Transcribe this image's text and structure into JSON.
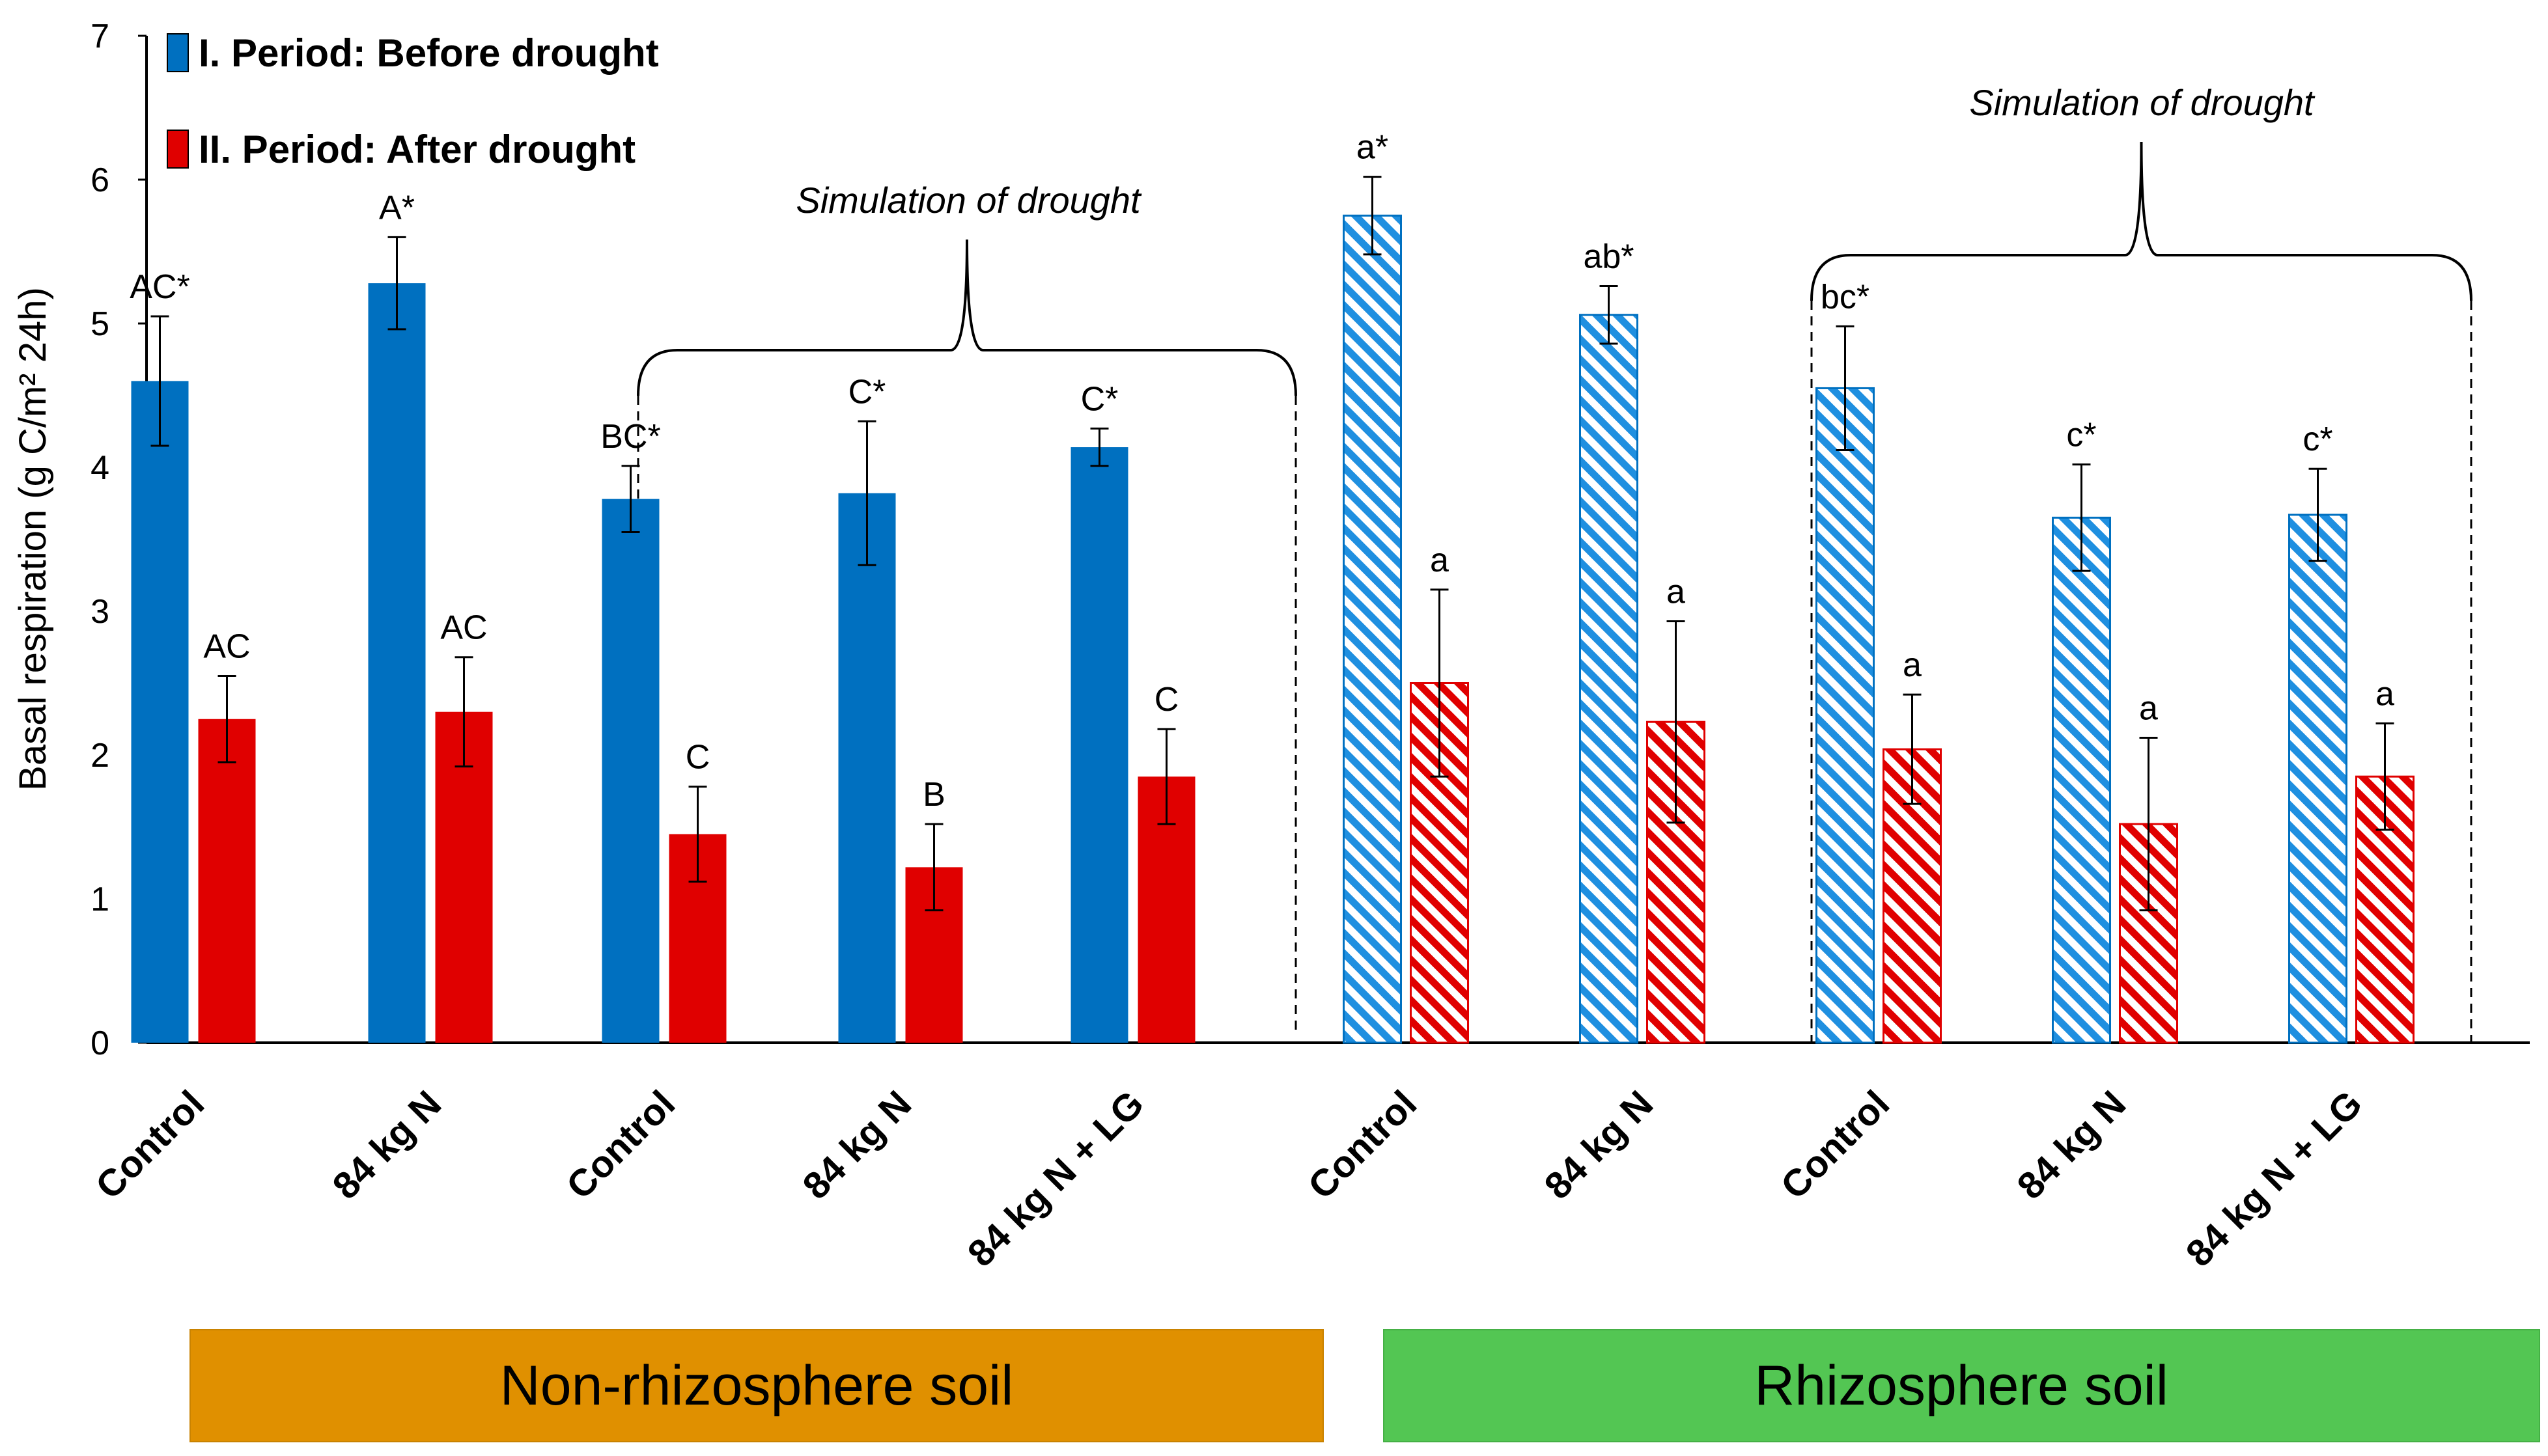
{
  "chart_data": {
    "type": "bar",
    "ylabel": "Basal respiration (g C/m² 24h)",
    "ylim": [
      0,
      7
    ],
    "yticks": [
      "0",
      "1",
      "2",
      "3",
      "4",
      "5",
      "6",
      "7"
    ],
    "grid": false,
    "legend_position": "top-left",
    "categories": [
      "Control",
      "84 kg N",
      "Control",
      "84 kg N",
      "84 kg N + LG",
      "Control",
      "84 kg N",
      "Control",
      "84 kg N",
      "84 kg N + LG"
    ],
    "series": [
      {
        "name": "I. Period: Before drought",
        "color": "#0070C0",
        "values": [
          4.6,
          5.28,
          3.78,
          3.82,
          4.14,
          5.75,
          5.06,
          4.55,
          3.65,
          3.67
        ],
        "errors": [
          0.45,
          0.32,
          0.23,
          0.5,
          0.13,
          0.27,
          0.2,
          0.43,
          0.37,
          0.32
        ],
        "labels": [
          "AC*",
          "A*",
          "BC*",
          "C*",
          "C*",
          "a*",
          "ab*",
          "bc*",
          "c*",
          "c*"
        ]
      },
      {
        "name": "II. Period: After drought",
        "color": "#E00000",
        "values": [
          2.25,
          2.3,
          1.45,
          1.22,
          1.85,
          2.5,
          2.23,
          2.04,
          1.52,
          1.85
        ],
        "errors": [
          0.3,
          0.38,
          0.33,
          0.3,
          0.33,
          0.65,
          0.7,
          0.38,
          0.6,
          0.37
        ],
        "labels": [
          "AC",
          "AC",
          "C",
          "B",
          "C",
          "a",
          "a",
          "a",
          "a",
          "a"
        ]
      }
    ],
    "annotations": {
      "drought_left": "Simulation of drought",
      "drought_right": "Simulation of drought"
    },
    "groups": [
      {
        "label": "Non-rhizosphere soil",
        "color": "#E09000"
      },
      {
        "label": "Rhizosphere soil",
        "color": "#53C653"
      }
    ]
  }
}
